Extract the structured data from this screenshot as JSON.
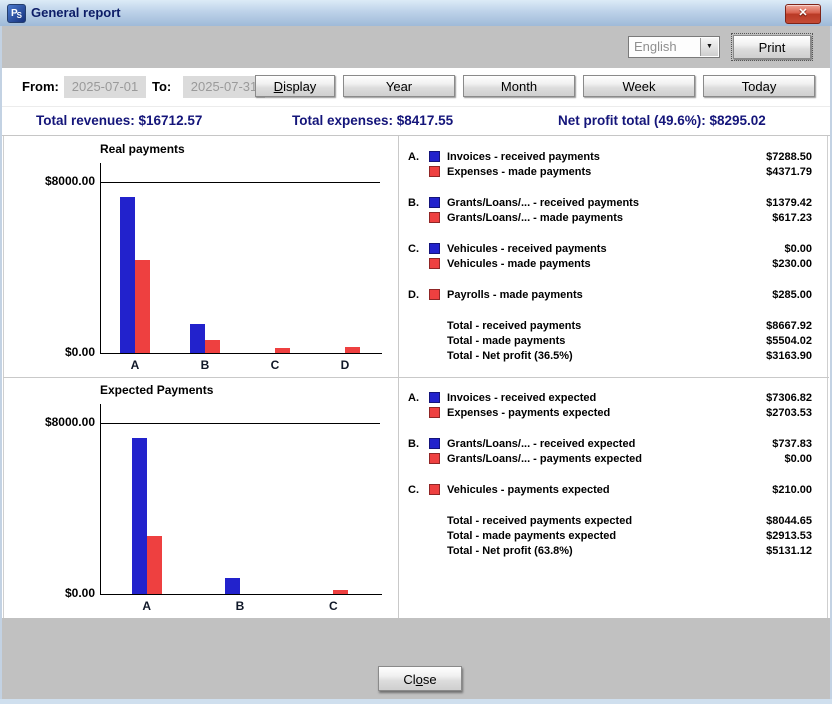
{
  "window": {
    "title": "General report",
    "icon_letters": [
      "P",
      "S"
    ]
  },
  "icons": {
    "close": "✕",
    "dropdown_arrow": "▼"
  },
  "toolbar": {
    "language_selected": "English",
    "print_label": "Print"
  },
  "filters": {
    "from_label": "From:",
    "from_value": "2025-07-01",
    "to_label": "To:",
    "to_value": "2025-07-31",
    "buttons": [
      {
        "label": "Display",
        "underline_index": 0
      },
      {
        "label": "Year",
        "underline_index": null
      },
      {
        "label": "Month",
        "underline_index": null
      },
      {
        "label": "Week",
        "underline_index": null
      },
      {
        "label": "Today",
        "underline_index": null
      }
    ]
  },
  "summary": {
    "revenues": "Total revenues: $16712.57",
    "expenses": "Total expenses: $8417.55",
    "net_profit": "Net profit total (49.6%): $8295.02"
  },
  "footer": {
    "close_button": {
      "label": "Close",
      "underline_index": 2
    }
  },
  "colors": {
    "bar_blue": "#2222cc",
    "bar_red": "#ee4040",
    "summary_text": "#14157a"
  },
  "chart_data": [
    {
      "type": "bar",
      "title": "Real payments",
      "categories": [
        "A",
        "B",
        "C",
        "D"
      ],
      "ylim": [
        0,
        8000
      ],
      "yticks": [
        "$8000.00",
        "$0.00"
      ],
      "grid": "top-line-only",
      "legend_position": "right",
      "series": [
        {
          "name": "received payments",
          "color": "#2222cc",
          "values": [
            7288.5,
            1379.42,
            0,
            null
          ]
        },
        {
          "name": "made payments",
          "color": "#ee4040",
          "values": [
            4371.79,
            617.23,
            230.0,
            285.0
          ]
        }
      ],
      "legend": [
        {
          "letter": "A.",
          "rows": [
            {
              "color": "#2222cc",
              "label": "Invoices - received payments",
              "value": "$7288.50"
            },
            {
              "color": "#ee4040",
              "label": "Expenses - made payments",
              "value": "$4371.79"
            }
          ]
        },
        {
          "letter": "B.",
          "rows": [
            {
              "color": "#2222cc",
              "label": "Grants/Loans/... - received payments",
              "value": "$1379.42"
            },
            {
              "color": "#ee4040",
              "label": "Grants/Loans/... - made payments",
              "value": "$617.23"
            }
          ]
        },
        {
          "letter": "C.",
          "rows": [
            {
              "color": "#2222cc",
              "label": "Vehicules - received payments",
              "value": "$0.00"
            },
            {
              "color": "#ee4040",
              "label": "Vehicules - made payments",
              "value": "$230.00"
            }
          ]
        },
        {
          "letter": "D.",
          "rows": [
            {
              "color": "#ee4040",
              "label": "Payrolls - made payments",
              "value": "$285.00"
            }
          ]
        }
      ],
      "totals": [
        {
          "label": "Total - received payments",
          "value": "$8667.92"
        },
        {
          "label": "Total - made payments",
          "value": "$5504.02"
        },
        {
          "label": "Total - Net profit (36.5%)",
          "value": "$3163.90"
        }
      ]
    },
    {
      "type": "bar",
      "title": "Expected Payments",
      "categories": [
        "A",
        "B",
        "C"
      ],
      "ylim": [
        0,
        8000
      ],
      "yticks": [
        "$8000.00",
        "$0.00"
      ],
      "grid": "top-line-only",
      "legend_position": "right",
      "series": [
        {
          "name": "received expected",
          "color": "#2222cc",
          "values": [
            7306.82,
            737.83,
            null
          ]
        },
        {
          "name": "payments expected",
          "color": "#ee4040",
          "values": [
            2703.53,
            0,
            210.0
          ]
        }
      ],
      "legend": [
        {
          "letter": "A.",
          "rows": [
            {
              "color": "#2222cc",
              "label": "Invoices - received expected",
              "value": "$7306.82"
            },
            {
              "color": "#ee4040",
              "label": "Expenses - payments expected",
              "value": "$2703.53"
            }
          ]
        },
        {
          "letter": "B.",
          "rows": [
            {
              "color": "#2222cc",
              "label": "Grants/Loans/... - received expected",
              "value": "$737.83"
            },
            {
              "color": "#ee4040",
              "label": "Grants/Loans/... - payments expected",
              "value": "$0.00"
            }
          ]
        },
        {
          "letter": "C.",
          "rows": [
            {
              "color": "#ee4040",
              "label": "Vehicules - payments expected",
              "value": "$210.00"
            }
          ]
        }
      ],
      "totals": [
        {
          "label": "Total - received payments expected",
          "value": "$8044.65"
        },
        {
          "label": "Total - made payments expected",
          "value": "$2913.53"
        },
        {
          "label": "Total - Net profit (63.8%)",
          "value": "$5131.12"
        }
      ]
    }
  ]
}
